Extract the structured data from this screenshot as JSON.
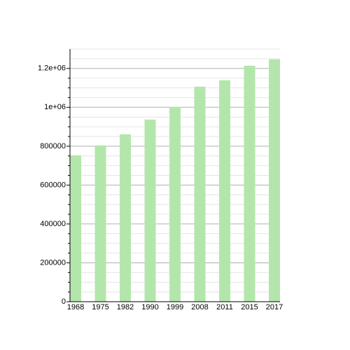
{
  "chart_data": {
    "type": "bar",
    "categories": [
      "1968",
      "1975",
      "1982",
      "1990",
      "1999",
      "2008",
      "2011",
      "2015",
      "2017"
    ],
    "values": [
      753000,
      804000,
      861000,
      937000,
      1002000,
      1106000,
      1139000,
      1214000,
      1247000
    ],
    "color": "#b3e6ab",
    "ylim": [
      0,
      1300000
    ],
    "yticks": [
      0,
      200000,
      400000,
      600000,
      800000,
      {
        "value": 1000000,
        "label": "1e+06"
      },
      {
        "value": 1200000,
        "label": "1.2e+06"
      }
    ],
    "grid": true
  }
}
